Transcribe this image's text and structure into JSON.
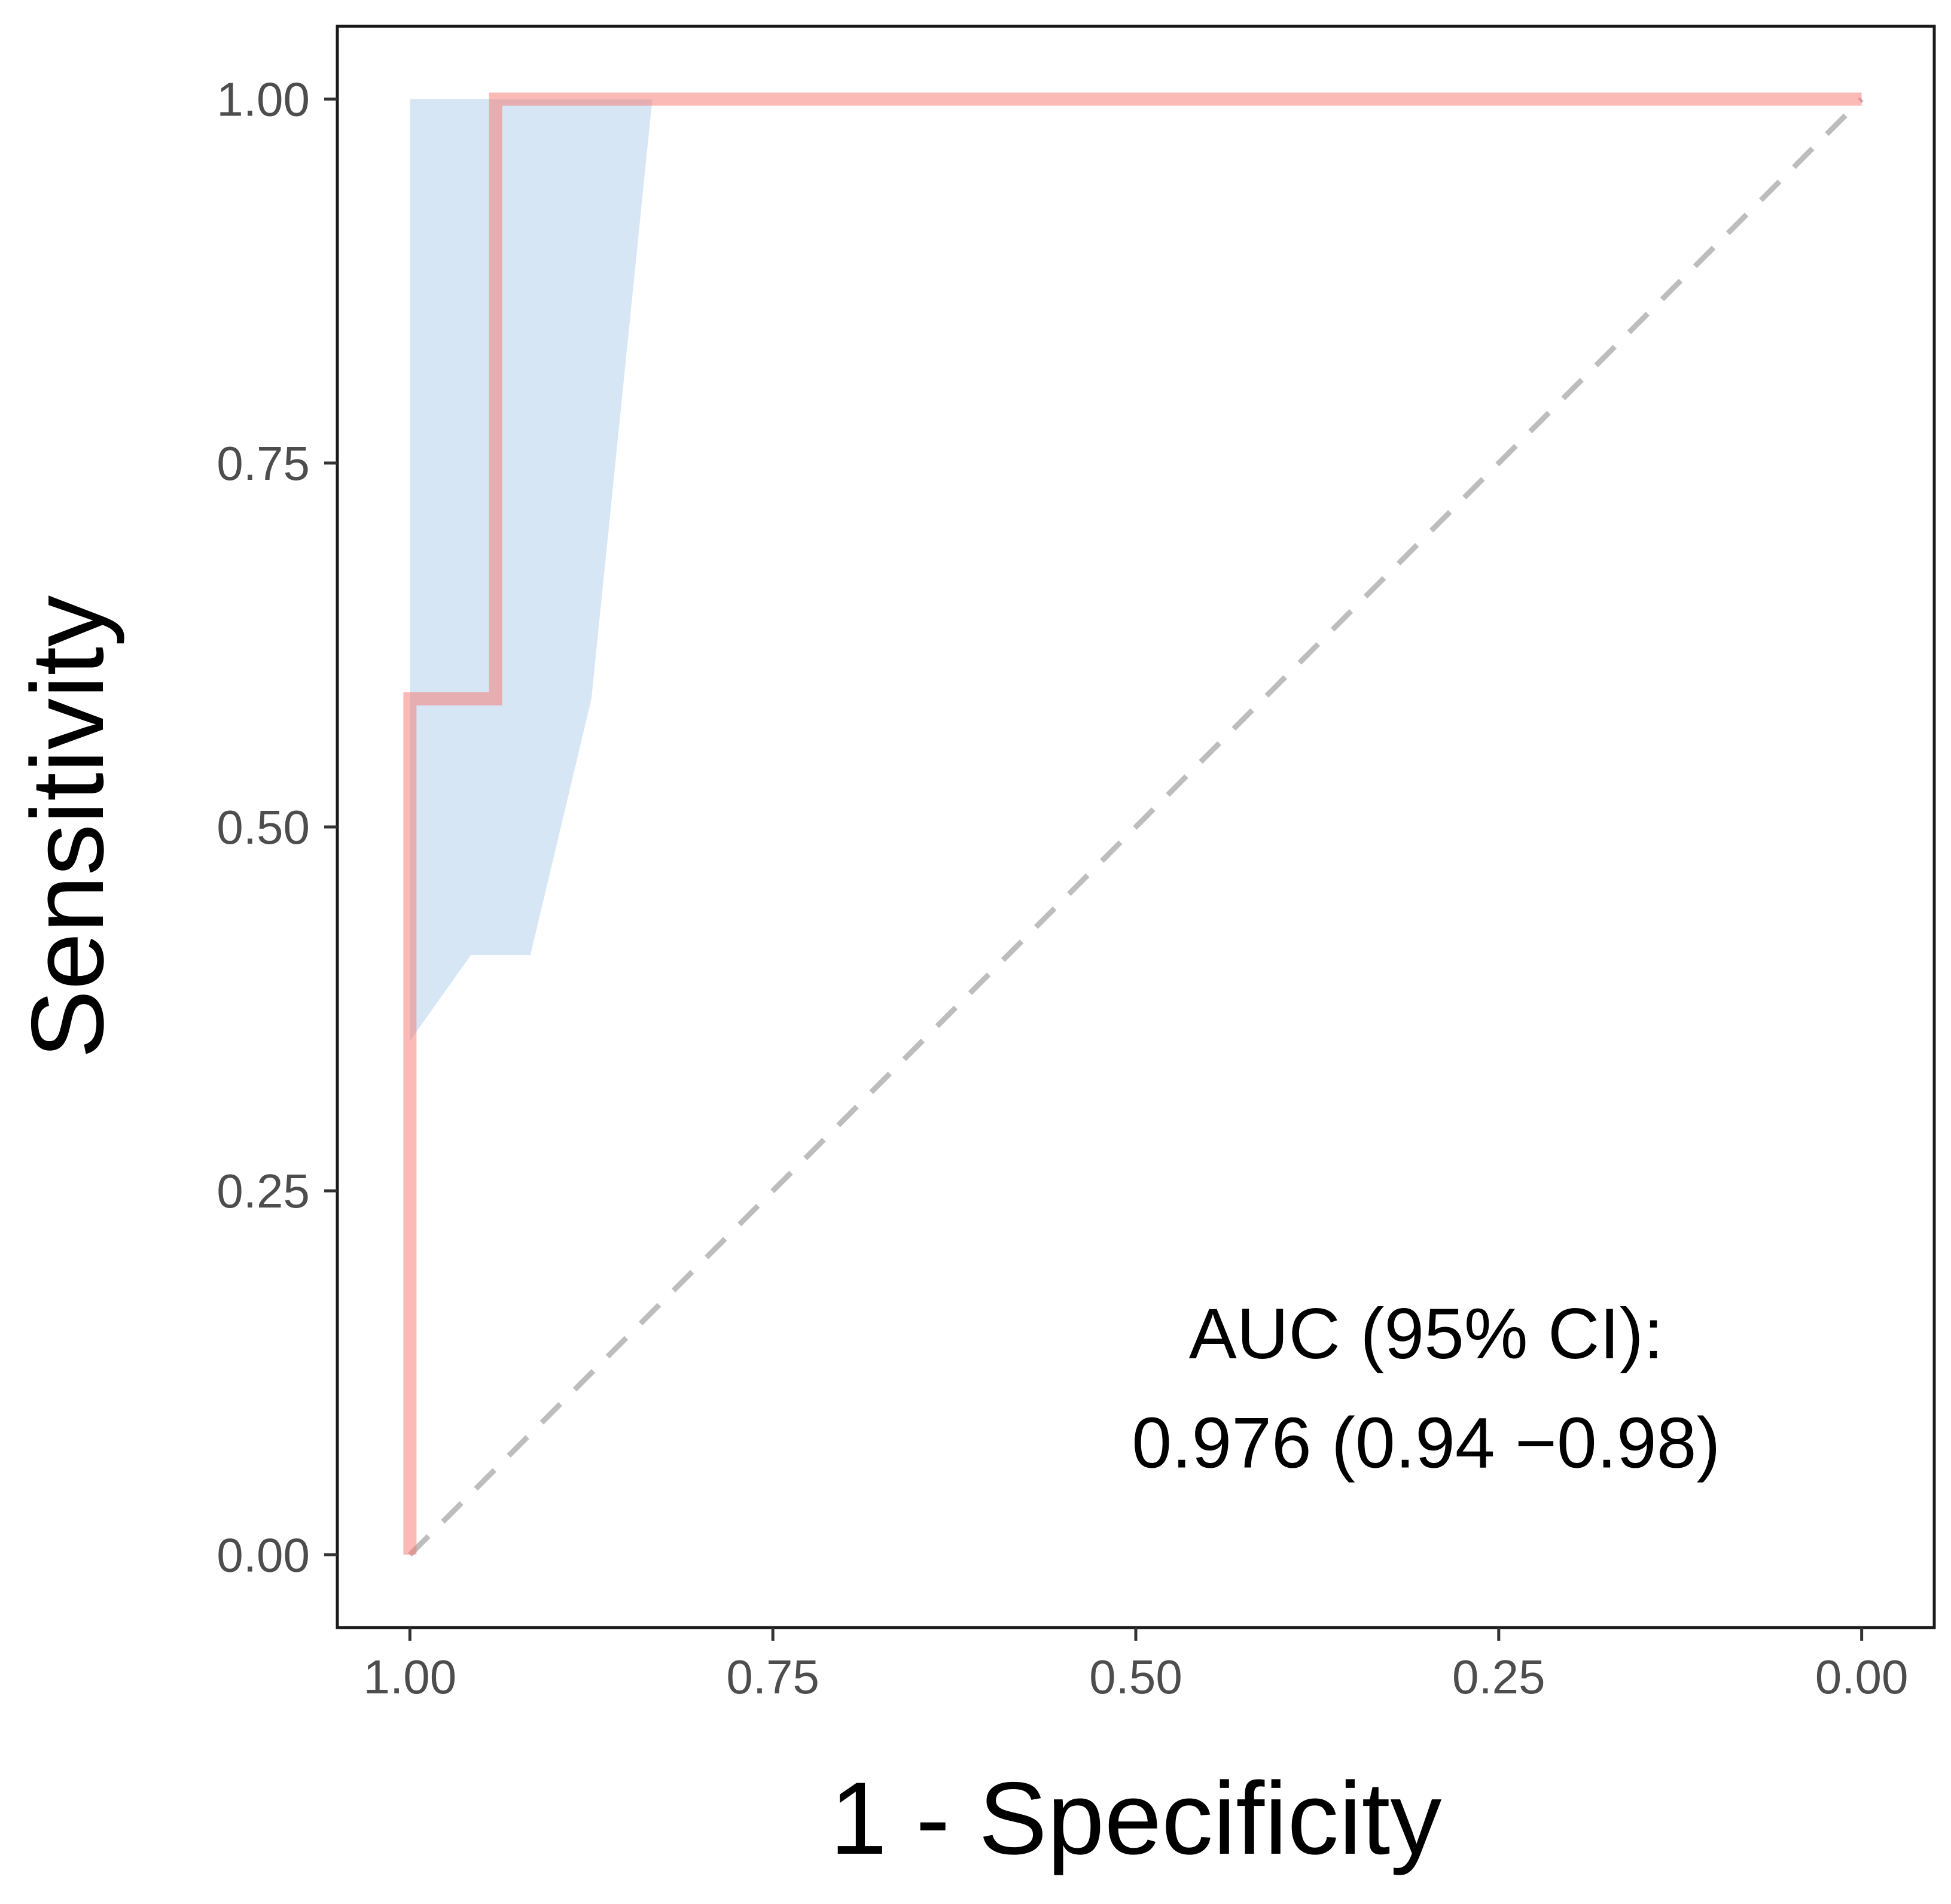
{
  "chart_data": {
    "type": "line",
    "title": "",
    "xlabel": "1 - Specificity",
    "ylabel": "Sensitivity",
    "x_reversed": true,
    "xlim": [
      1.05,
      -0.05
    ],
    "ylim": [
      -0.05,
      1.05
    ],
    "x_ticks": [
      1.0,
      0.75,
      0.5,
      0.25,
      0.0
    ],
    "x_tick_labels": [
      "1.00",
      "0.75",
      "0.50",
      "0.25",
      "0.00"
    ],
    "y_ticks": [
      0.0,
      0.25,
      0.5,
      0.75,
      1.0
    ],
    "y_tick_labels": [
      "0.00",
      "0.25",
      "0.50",
      "0.75",
      "1.00"
    ],
    "grid": false,
    "series": [
      {
        "name": "ROC curve",
        "color": "#F8766D",
        "x": [
          1.0,
          1.0,
          0.941,
          0.941,
          0.0
        ],
        "y": [
          0.0,
          0.588,
          0.588,
          1.0,
          1.0
        ]
      }
    ],
    "confidence_band": {
      "name": "95% CI",
      "color": "#C6DBEF",
      "upper": {
        "x": [
          1.0,
          0.833
        ],
        "y": [
          1.0,
          1.0
        ]
      },
      "lower": {
        "x": [
          0.833,
          0.875,
          0.917,
          0.958,
          1.0
        ],
        "y": [
          1.0,
          0.588,
          0.412,
          0.412,
          0.353
        ]
      }
    },
    "reference_line": {
      "name": "chance",
      "color": "#BDBDBD",
      "style": "dashed",
      "x": [
        1.0,
        0.0
      ],
      "y": [
        0.0,
        1.0
      ]
    },
    "annotations": [
      {
        "text": "AUC (95% CI):",
        "x": 0.3,
        "y": 0.135
      },
      {
        "text": "0.976 (0.94 −0.98)",
        "x": 0.3,
        "y": 0.06
      }
    ]
  }
}
